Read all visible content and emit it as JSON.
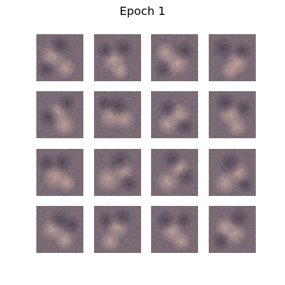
{
  "figure": {
    "title": "Epoch 1",
    "rows": 4,
    "cols": 4
  },
  "palette": {
    "dark": "#4e4552",
    "mid": "#7a6a74",
    "light": "#c8a99e",
    "cool": "#5e5a74",
    "noise": "#8f8290"
  },
  "samples": [
    {
      "blobs": [
        [
          0.35,
          0.45,
          0.22,
          1
        ],
        [
          0.62,
          0.72,
          0.18,
          1
        ],
        [
          0.5,
          0.25,
          0.2,
          0
        ],
        [
          0.2,
          0.75,
          0.16,
          0
        ]
      ]
    },
    {
      "blobs": [
        [
          0.42,
          0.55,
          0.22,
          1
        ],
        [
          0.55,
          0.78,
          0.16,
          1
        ],
        [
          0.62,
          0.3,
          0.18,
          0
        ],
        [
          0.25,
          0.35,
          0.16,
          0
        ]
      ]
    },
    {
      "blobs": [
        [
          0.55,
          0.62,
          0.22,
          1
        ],
        [
          0.3,
          0.4,
          0.18,
          1
        ],
        [
          0.72,
          0.35,
          0.18,
          0
        ],
        [
          0.25,
          0.75,
          0.16,
          0
        ]
      ]
    },
    {
      "blobs": [
        [
          0.6,
          0.62,
          0.2,
          1
        ],
        [
          0.45,
          0.78,
          0.16,
          1
        ],
        [
          0.3,
          0.3,
          0.2,
          0
        ],
        [
          0.72,
          0.35,
          0.16,
          0
        ]
      ]
    },
    {
      "blobs": [
        [
          0.45,
          0.45,
          0.18,
          1
        ],
        [
          0.6,
          0.72,
          0.2,
          1
        ],
        [
          0.25,
          0.55,
          0.18,
          0
        ],
        [
          0.65,
          0.25,
          0.16,
          0
        ]
      ]
    },
    {
      "blobs": [
        [
          0.35,
          0.55,
          0.2,
          1
        ],
        [
          0.65,
          0.6,
          0.18,
          1
        ],
        [
          0.5,
          0.3,
          0.2,
          0
        ],
        [
          0.22,
          0.25,
          0.14,
          0
        ]
      ]
    },
    {
      "blobs": [
        [
          0.6,
          0.5,
          0.2,
          1
        ],
        [
          0.35,
          0.7,
          0.18,
          1
        ],
        [
          0.35,
          0.35,
          0.16,
          0
        ],
        [
          0.72,
          0.75,
          0.16,
          0
        ]
      ]
    },
    {
      "blobs": [
        [
          0.45,
          0.5,
          0.2,
          1
        ],
        [
          0.6,
          0.75,
          0.18,
          1
        ],
        [
          0.35,
          0.25,
          0.18,
          0
        ],
        [
          0.75,
          0.35,
          0.16,
          0
        ]
      ]
    },
    {
      "blobs": [
        [
          0.4,
          0.6,
          0.22,
          1
        ],
        [
          0.65,
          0.72,
          0.16,
          1
        ],
        [
          0.55,
          0.28,
          0.18,
          0
        ],
        [
          0.22,
          0.3,
          0.16,
          0
        ]
      ]
    },
    {
      "blobs": [
        [
          0.3,
          0.65,
          0.22,
          1
        ],
        [
          0.62,
          0.45,
          0.18,
          1
        ],
        [
          0.55,
          0.25,
          0.2,
          0
        ],
        [
          0.75,
          0.75,
          0.16,
          0
        ]
      ]
    },
    {
      "blobs": [
        [
          0.35,
          0.7,
          0.2,
          1
        ],
        [
          0.6,
          0.4,
          0.18,
          1
        ],
        [
          0.45,
          0.22,
          0.18,
          0
        ],
        [
          0.75,
          0.6,
          0.16,
          0
        ]
      ]
    },
    {
      "blobs": [
        [
          0.35,
          0.72,
          0.2,
          1
        ],
        [
          0.62,
          0.5,
          0.18,
          1
        ],
        [
          0.45,
          0.3,
          0.2,
          0
        ],
        [
          0.78,
          0.78,
          0.14,
          0
        ]
      ]
    },
    {
      "blobs": [
        [
          0.35,
          0.5,
          0.2,
          1
        ],
        [
          0.6,
          0.72,
          0.18,
          1
        ],
        [
          0.5,
          0.3,
          0.18,
          0
        ],
        [
          0.75,
          0.4,
          0.16,
          0
        ]
      ]
    },
    {
      "blobs": [
        [
          0.5,
          0.45,
          0.2,
          1
        ],
        [
          0.35,
          0.75,
          0.18,
          1
        ],
        [
          0.6,
          0.25,
          0.18,
          0
        ],
        [
          0.25,
          0.3,
          0.16,
          0
        ]
      ]
    },
    {
      "blobs": [
        [
          0.45,
          0.55,
          0.2,
          1
        ],
        [
          0.65,
          0.75,
          0.16,
          1
        ],
        [
          0.3,
          0.3,
          0.18,
          0
        ],
        [
          0.7,
          0.3,
          0.16,
          0
        ]
      ]
    },
    {
      "blobs": [
        [
          0.55,
          0.6,
          0.2,
          1
        ],
        [
          0.35,
          0.45,
          0.18,
          1
        ],
        [
          0.65,
          0.25,
          0.18,
          0
        ],
        [
          0.25,
          0.75,
          0.16,
          0
        ]
      ]
    }
  ]
}
